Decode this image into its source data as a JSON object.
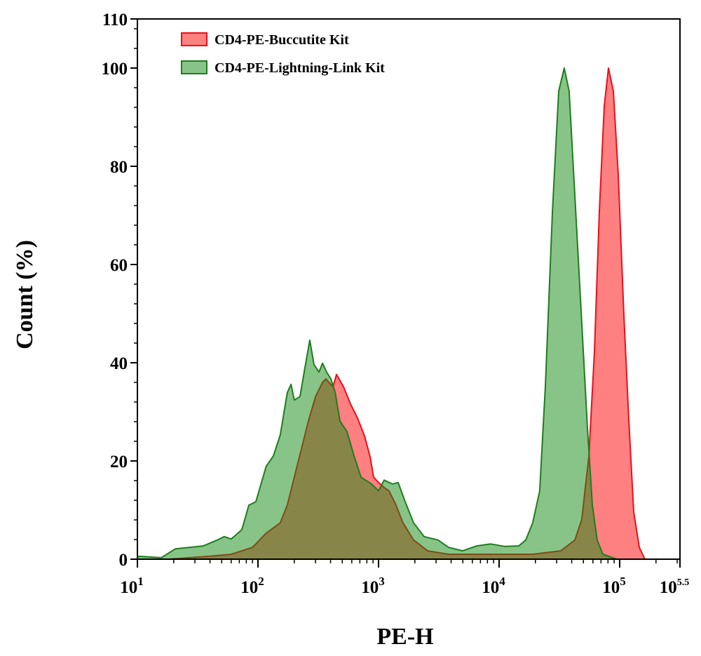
{
  "chart_data": {
    "type": "area",
    "title": "",
    "xlabel": "PE-H",
    "ylabel": "Count (%)",
    "x_scale": "log",
    "xlim": [
      10,
      316228
    ],
    "ylim": [
      0,
      110
    ],
    "x_ticks": [
      {
        "base": "10",
        "exp": "1",
        "value": 10
      },
      {
        "base": "10",
        "exp": "2",
        "value": 100
      },
      {
        "base": "10",
        "exp": "3",
        "value": 1000
      },
      {
        "base": "10",
        "exp": "4",
        "value": 10000
      },
      {
        "base": "10",
        "exp": "5",
        "value": 100000
      },
      {
        "base": "10",
        "exp": "5.5",
        "value": 316228
      }
    ],
    "y_ticks": [
      "0",
      "20",
      "40",
      "60",
      "80",
      "100",
      "110"
    ],
    "grid": false,
    "legend_position": "top-left",
    "series": [
      {
        "name": "CD4-PE-Buccutite Kit",
        "line_color": "#e8101a",
        "fill_color": "#ff8080",
        "x": [
          18,
          40,
          60,
          90,
          117,
          153,
          175,
          200,
          229,
          262,
          300,
          343,
          366,
          419,
          448,
          512,
          585,
          670,
          765,
          851,
          910,
          1000,
          1113,
          1223,
          1397,
          1596,
          1953,
          2553,
          3811,
          8507,
          19000,
          32500,
          42500,
          48500,
          55500,
          61800,
          67800,
          74500,
          80700,
          88700,
          97300,
          108400,
          119100,
          130700,
          145500,
          161800
        ],
        "y": [
          0,
          0.6,
          1,
          2.4,
          5.3,
          7.4,
          11,
          16.7,
          22.4,
          28.1,
          33.1,
          36,
          36.7,
          35.1,
          37.6,
          35.1,
          31.6,
          28.7,
          25.1,
          20.9,
          16.7,
          15.6,
          14.6,
          13.9,
          11,
          7.4,
          3.9,
          1.7,
          1,
          1,
          1,
          1.7,
          3.9,
          8.1,
          20.9,
          42.3,
          70.9,
          92.3,
          100,
          95.3,
          78.1,
          49.6,
          28.1,
          9.6,
          2.4,
          0
        ]
      },
      {
        "name": "CD4-PE-Lightning-Link Kit",
        "line_color": "#1e7d1e",
        "fill_color": "#118911",
        "x": [
          10,
          15.8,
          20.6,
          35.2,
          46,
          52.6,
          60,
          73.5,
          84,
          96,
          117,
          134,
          153,
          175,
          188,
          200,
          223,
          245,
          269,
          292,
          321,
          343,
          371,
          403,
          437,
          479,
          547,
          627,
          716,
          875,
          1000,
          1113,
          1306,
          1455,
          1663,
          1953,
          2388,
          3119,
          3811,
          4986,
          6513,
          8507,
          11140,
          14550,
          16630,
          19000,
          21700,
          24200,
          27700,
          31200,
          34700,
          38100,
          42500,
          48500,
          54000,
          59300,
          65100,
          72500,
          94800
        ],
        "y": [
          0.6,
          0.3,
          2.1,
          2.7,
          3.9,
          4.6,
          4.1,
          6,
          11,
          11.7,
          18.9,
          21,
          25.3,
          33.9,
          35.6,
          32.4,
          33.1,
          38.9,
          44.6,
          39.6,
          38.1,
          39.9,
          38.1,
          36.7,
          33.9,
          28.1,
          26,
          21,
          16.7,
          15.3,
          13.9,
          16.1,
          15.3,
          15.6,
          11.7,
          7.4,
          4.6,
          3.9,
          2.4,
          1.7,
          2.7,
          3.1,
          2.6,
          2.7,
          3.9,
          7.4,
          13.9,
          35.3,
          70.9,
          95.3,
          100,
          95.3,
          73.9,
          48.1,
          26.7,
          11,
          3.9,
          1,
          0
        ]
      }
    ]
  }
}
